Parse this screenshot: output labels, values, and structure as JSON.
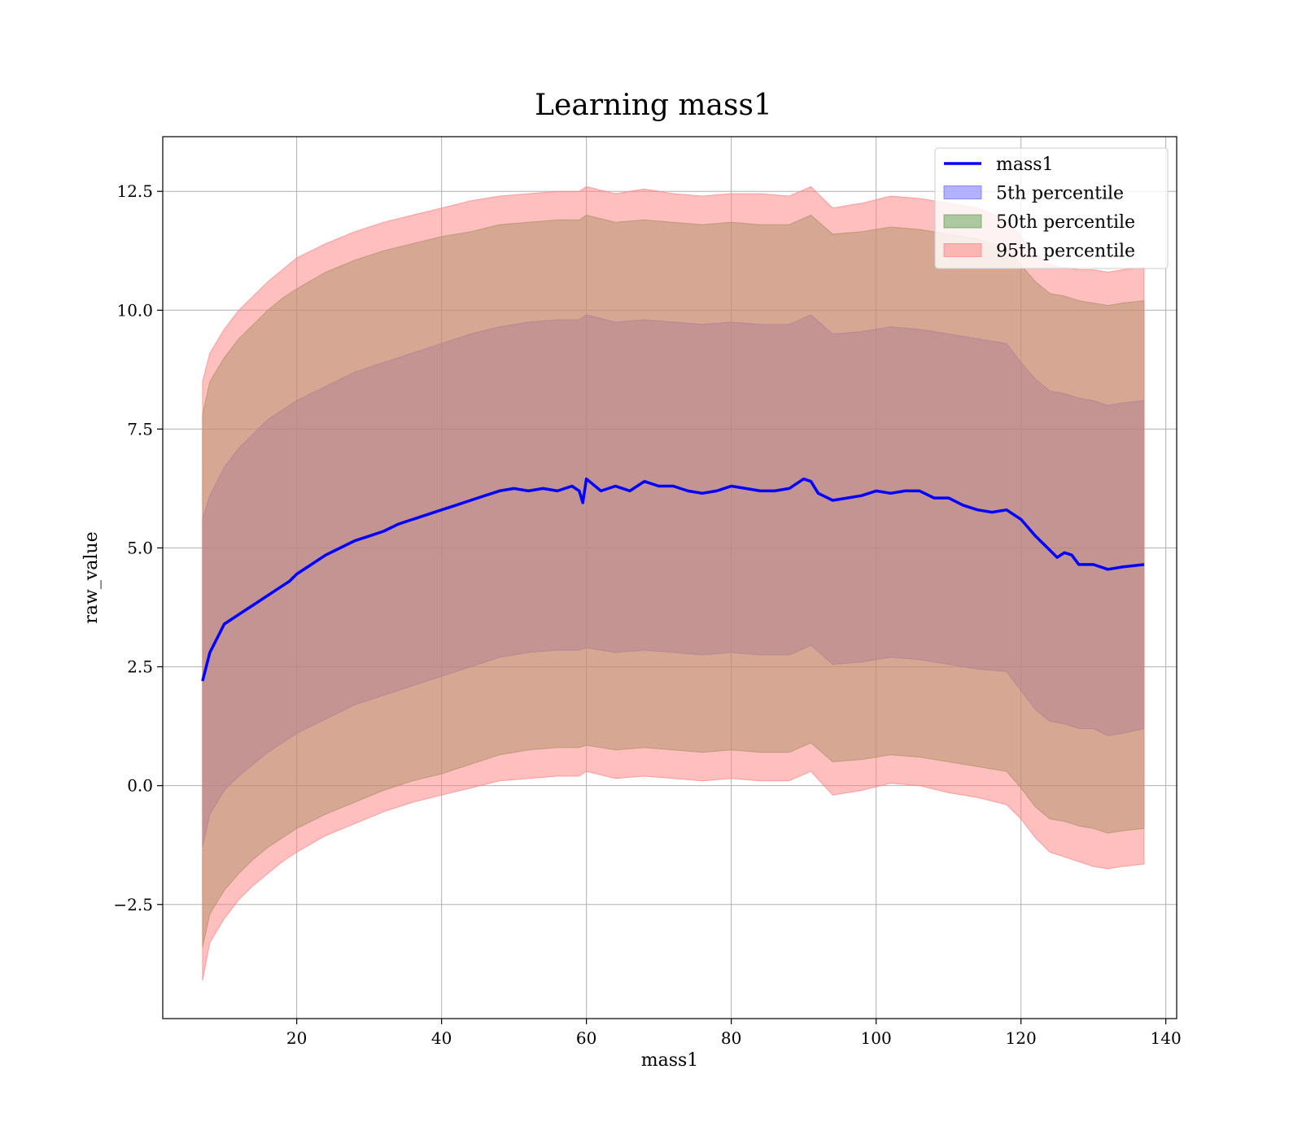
{
  "chart_data": {
    "type": "line",
    "title": "Learning mass1",
    "xlabel": "mass1",
    "ylabel": "raw_value",
    "xlim": [
      1.5,
      141.5
    ],
    "ylim": [
      -4.9,
      13.65
    ],
    "xticks": [
      20,
      40,
      60,
      80,
      100,
      120,
      140
    ],
    "yticks": [
      -2.5,
      0.0,
      2.5,
      5.0,
      7.5,
      10.0,
      12.5
    ],
    "xtick_labels": [
      "20",
      "40",
      "60",
      "80",
      "100",
      "120",
      "140"
    ],
    "ytick_labels": [
      "−2.5",
      "0.0",
      "2.5",
      "5.0",
      "7.5",
      "10.0",
      "12.5"
    ],
    "grid": true,
    "legend_position": "top-right",
    "colors": {
      "line": "#0000ff",
      "band_5th": "#6666ff",
      "band_50th": "#5a9e4b",
      "band_95th": "#ff8080"
    },
    "series": [
      {
        "name": "mass1",
        "kind": "line",
        "x": [
          7,
          8,
          9,
          10,
          11,
          12,
          13,
          14,
          15,
          16,
          17,
          18,
          19,
          20,
          22,
          24,
          26,
          28,
          30,
          32,
          34,
          36,
          38,
          40,
          42,
          44,
          46,
          48,
          50,
          52,
          54,
          56,
          58,
          59,
          59.5,
          60,
          62,
          64,
          66,
          68,
          70,
          72,
          74,
          76,
          78,
          80,
          82,
          84,
          86,
          88,
          90,
          91,
          92,
          94,
          96,
          98,
          100,
          102,
          104,
          106,
          108,
          110,
          112,
          114,
          116,
          118,
          120,
          122,
          124,
          125,
          126,
          127,
          128,
          130,
          132,
          134,
          137
        ],
        "values": [
          2.2,
          2.8,
          3.1,
          3.4,
          3.5,
          3.6,
          3.7,
          3.8,
          3.9,
          4.0,
          4.1,
          4.2,
          4.3,
          4.45,
          4.65,
          4.85,
          5.0,
          5.15,
          5.25,
          5.35,
          5.5,
          5.6,
          5.7,
          5.8,
          5.9,
          6.0,
          6.1,
          6.2,
          6.25,
          6.2,
          6.25,
          6.2,
          6.3,
          6.2,
          5.95,
          6.45,
          6.2,
          6.3,
          6.2,
          6.4,
          6.3,
          6.3,
          6.2,
          6.15,
          6.2,
          6.3,
          6.25,
          6.2,
          6.2,
          6.25,
          6.45,
          6.4,
          6.15,
          6.0,
          6.05,
          6.1,
          6.2,
          6.15,
          6.2,
          6.2,
          6.05,
          6.05,
          5.9,
          5.8,
          5.75,
          5.8,
          5.6,
          5.25,
          4.95,
          4.8,
          4.9,
          4.85,
          4.65,
          4.65,
          4.55,
          4.6,
          4.65
        ]
      },
      {
        "name": "5th percentile",
        "kind": "band",
        "x": [
          7,
          8,
          10,
          12,
          14,
          16,
          18,
          20,
          24,
          28,
          32,
          36,
          40,
          44,
          48,
          52,
          56,
          59,
          60,
          64,
          68,
          72,
          76,
          80,
          84,
          88,
          91,
          94,
          98,
          102,
          106,
          110,
          114,
          118,
          120,
          122,
          124,
          126,
          128,
          130,
          132,
          134,
          137
        ],
        "lower": [
          -1.3,
          -0.6,
          -0.1,
          0.2,
          0.45,
          0.7,
          0.9,
          1.1,
          1.4,
          1.7,
          1.9,
          2.1,
          2.3,
          2.5,
          2.7,
          2.8,
          2.85,
          2.85,
          2.9,
          2.8,
          2.85,
          2.8,
          2.75,
          2.8,
          2.75,
          2.75,
          2.95,
          2.55,
          2.6,
          2.7,
          2.65,
          2.55,
          2.45,
          2.4,
          2.0,
          1.6,
          1.35,
          1.3,
          1.2,
          1.2,
          1.05,
          1.1,
          1.2
        ],
        "upper": [
          5.6,
          6.1,
          6.7,
          7.1,
          7.4,
          7.7,
          7.9,
          8.1,
          8.4,
          8.7,
          8.9,
          9.1,
          9.3,
          9.5,
          9.65,
          9.75,
          9.8,
          9.8,
          9.9,
          9.75,
          9.8,
          9.75,
          9.7,
          9.75,
          9.7,
          9.7,
          9.9,
          9.5,
          9.55,
          9.65,
          9.6,
          9.5,
          9.4,
          9.3,
          8.9,
          8.55,
          8.3,
          8.25,
          8.15,
          8.1,
          8.0,
          8.05,
          8.1
        ]
      },
      {
        "name": "50th percentile",
        "kind": "band",
        "x": [
          7,
          8,
          10,
          12,
          14,
          16,
          18,
          20,
          24,
          28,
          32,
          36,
          40,
          44,
          48,
          52,
          56,
          59,
          60,
          64,
          68,
          72,
          76,
          80,
          84,
          88,
          91,
          94,
          98,
          102,
          106,
          110,
          114,
          118,
          120,
          122,
          124,
          126,
          128,
          130,
          132,
          134,
          137
        ],
        "lower": [
          -3.4,
          -2.7,
          -2.2,
          -1.85,
          -1.55,
          -1.3,
          -1.1,
          -0.9,
          -0.6,
          -0.35,
          -0.1,
          0.1,
          0.25,
          0.45,
          0.65,
          0.75,
          0.8,
          0.8,
          0.85,
          0.75,
          0.8,
          0.75,
          0.7,
          0.75,
          0.7,
          0.7,
          0.9,
          0.5,
          0.55,
          0.65,
          0.6,
          0.5,
          0.4,
          0.3,
          -0.05,
          -0.45,
          -0.7,
          -0.75,
          -0.85,
          -0.9,
          -1.0,
          -0.95,
          -0.9
        ],
        "upper": [
          7.8,
          8.5,
          9.0,
          9.4,
          9.7,
          10.0,
          10.25,
          10.45,
          10.8,
          11.05,
          11.25,
          11.4,
          11.55,
          11.65,
          11.8,
          11.85,
          11.9,
          11.9,
          12.0,
          11.85,
          11.9,
          11.85,
          11.8,
          11.85,
          11.8,
          11.8,
          12.0,
          11.6,
          11.65,
          11.75,
          11.7,
          11.6,
          11.5,
          11.3,
          10.95,
          10.6,
          10.35,
          10.3,
          10.2,
          10.15,
          10.1,
          10.15,
          10.2
        ]
      },
      {
        "name": "95th percentile",
        "kind": "band",
        "x": [
          7,
          8,
          10,
          12,
          14,
          16,
          18,
          20,
          24,
          28,
          32,
          36,
          40,
          44,
          48,
          52,
          56,
          59,
          60,
          64,
          68,
          72,
          76,
          80,
          84,
          88,
          91,
          94,
          98,
          102,
          106,
          110,
          114,
          118,
          120,
          122,
          124,
          126,
          128,
          130,
          132,
          134,
          137
        ],
        "lower": [
          -4.1,
          -3.3,
          -2.8,
          -2.4,
          -2.1,
          -1.85,
          -1.6,
          -1.4,
          -1.05,
          -0.8,
          -0.55,
          -0.35,
          -0.2,
          -0.05,
          0.1,
          0.15,
          0.2,
          0.2,
          0.3,
          0.15,
          0.2,
          0.15,
          0.1,
          0.15,
          0.1,
          0.1,
          0.3,
          -0.2,
          -0.1,
          0.05,
          0.0,
          -0.15,
          -0.25,
          -0.4,
          -0.7,
          -1.1,
          -1.4,
          -1.5,
          -1.6,
          -1.7,
          -1.75,
          -1.7,
          -1.65
        ],
        "upper": [
          8.5,
          9.1,
          9.6,
          10.0,
          10.3,
          10.6,
          10.85,
          11.1,
          11.4,
          11.65,
          11.85,
          12.0,
          12.15,
          12.3,
          12.4,
          12.45,
          12.5,
          12.5,
          12.6,
          12.45,
          12.55,
          12.45,
          12.4,
          12.45,
          12.45,
          12.4,
          12.6,
          12.15,
          12.25,
          12.4,
          12.35,
          12.25,
          12.15,
          11.9,
          11.55,
          11.2,
          10.95,
          10.9,
          10.85,
          10.85,
          10.8,
          10.85,
          10.9
        ]
      }
    ]
  }
}
